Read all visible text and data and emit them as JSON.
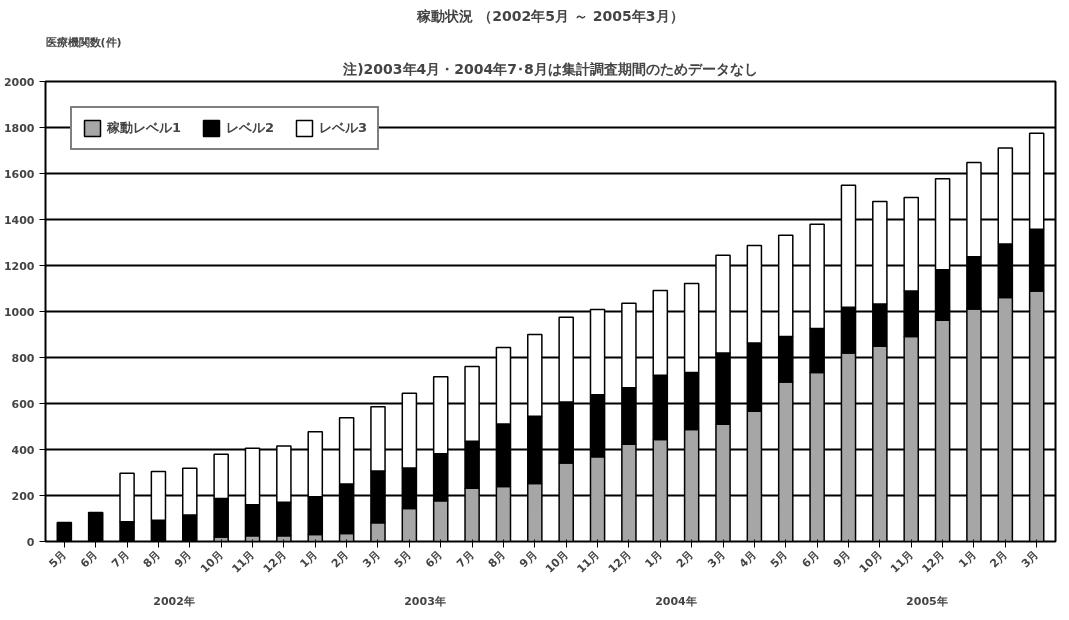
{
  "chart_data": {
    "type": "bar",
    "stacked": true,
    "title": "稼動状況 （2002年5月 ～ 2005年3月）",
    "subtitle": "注)2003年4月・2004年7･8月は集計調査期間のためデータなし",
    "ylabel": "医療機関数(件)",
    "categories": [
      "5月",
      "6月",
      "7月",
      "8月",
      "9月",
      "10月",
      "11月",
      "12月",
      "1月",
      "2月",
      "3月",
      "5月",
      "6月",
      "7月",
      "8月",
      "9月",
      "10月",
      "11月",
      "12月",
      "1月",
      "2月",
      "3月",
      "4月",
      "5月",
      "6月",
      "9月",
      "10月",
      "11月",
      "12月",
      "1月",
      "2月",
      "3月"
    ],
    "series": [
      {
        "name": "稼動レベル1",
        "color": "#a6a6a6",
        "values": [
          0,
          0,
          null,
          null,
          null,
          20,
          25,
          25,
          30,
          35,
          82,
          143,
          177,
          232,
          239,
          252,
          341,
          368,
          423,
          443,
          487,
          510,
          566,
          693,
          735,
          820,
          849,
          891,
          962,
          1011,
          1061,
          1089
        ]
      },
      {
        "name": "レベル2",
        "color": "#000000",
        "values": [
          83,
          126,
          86,
          92,
          115,
          167,
          135,
          146,
          165,
          215,
          225,
          177,
          205,
          204,
          272,
          293,
          266,
          270,
          245,
          280,
          248,
          310,
          297,
          198,
          191,
          198,
          184,
          198,
          219,
          227,
          233,
          269
        ]
      },
      {
        "name": "レベル3",
        "color": "#ffffff",
        "values": [
          0,
          0,
          211,
          212,
          204,
          192,
          245,
          244,
          282,
          288,
          279,
          325,
          334,
          325,
          332,
          355,
          368,
          371,
          368,
          368,
          387,
          425,
          424,
          441,
          453,
          531,
          445,
          407,
          396,
          410,
          417,
          417
        ]
      }
    ],
    "annotations": [
      "2002年",
      "2003年",
      "2004年",
      "2005年"
    ],
    "ylim": [
      0,
      2000
    ],
    "yticks": [
      0,
      200,
      400,
      600,
      800,
      1000,
      1200,
      1400,
      1600,
      1800,
      2000
    ],
    "grid": "y",
    "legend": "top left"
  }
}
